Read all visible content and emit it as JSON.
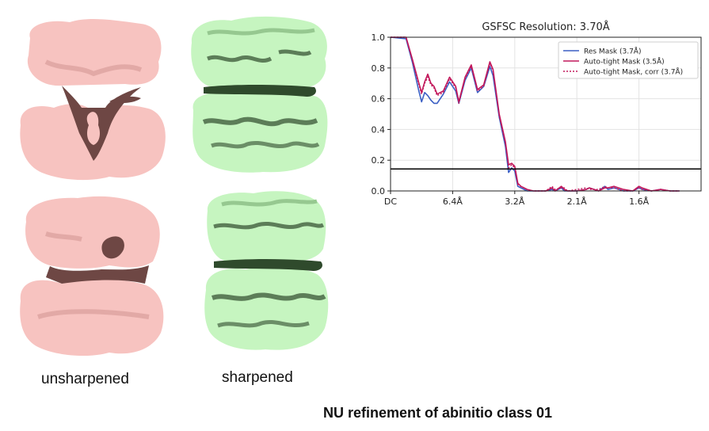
{
  "captions": {
    "unsharpened": "unsharpened",
    "sharpened": "sharpened",
    "footer": "NU refinement of abinitio class 01"
  },
  "colors": {
    "unsharpened_map": "#f7c3c0",
    "unsharpened_shadow": "#6e4744",
    "sharpened_map": "#c6f5c0",
    "sharpened_shadow": "#2f4a2c"
  },
  "chart_data": {
    "type": "line",
    "title": "GSFSC Resolution: 3.70Å",
    "xlabel": "",
    "ylabel": "",
    "ylim": [
      0,
      1
    ],
    "xlim": [
      0,
      1
    ],
    "yticks": [
      "0.0",
      "0.2",
      "0.4",
      "0.6",
      "0.8",
      "1.0"
    ],
    "xticks": [
      {
        "label": "DC",
        "x": 0.0
      },
      {
        "label": "6.4Å",
        "x": 0.2
      },
      {
        "label": "3.2Å",
        "x": 0.4
      },
      {
        "label": "2.1Å",
        "x": 0.6
      },
      {
        "label": "1.6Å",
        "x": 0.8
      }
    ],
    "threshold": 0.143,
    "grid": true,
    "legend_position": "top-right",
    "series": [
      {
        "name": "Res Mask (3.7Å)",
        "color": "#3b5fc4",
        "dash": "solid",
        "x": [
          0.0,
          0.05,
          0.07,
          0.09,
          0.1,
          0.11,
          0.12,
          0.13,
          0.14,
          0.15,
          0.17,
          0.19,
          0.21,
          0.22,
          0.24,
          0.26,
          0.28,
          0.3,
          0.32,
          0.33,
          0.35,
          0.37,
          0.38,
          0.39,
          0.4,
          0.41,
          0.42,
          0.44,
          0.46,
          0.5,
          0.52,
          0.53,
          0.55,
          0.56,
          0.57,
          0.6,
          0.63,
          0.64,
          0.67,
          0.69,
          0.7,
          0.72,
          0.75,
          0.78,
          0.8,
          0.81,
          0.84,
          0.87,
          0.9,
          0.93
        ],
        "y": [
          1.0,
          0.99,
          0.84,
          0.66,
          0.58,
          0.64,
          0.62,
          0.59,
          0.57,
          0.57,
          0.63,
          0.71,
          0.65,
          0.57,
          0.72,
          0.8,
          0.64,
          0.68,
          0.81,
          0.75,
          0.48,
          0.29,
          0.12,
          0.15,
          0.13,
          0.03,
          0.02,
          0.0,
          0.0,
          0.0,
          0.01,
          0.0,
          0.02,
          0.0,
          0.0,
          0.0,
          0.01,
          0.02,
          0.0,
          0.03,
          0.01,
          0.02,
          0.0,
          0.0,
          0.02,
          0.01,
          0.0,
          0.01,
          0.0,
          0.0
        ]
      },
      {
        "name": "Auto-tight Mask (3.5Å)",
        "color": "#c2185b",
        "dash": "solid",
        "x": [
          0.0,
          0.05,
          0.07,
          0.09,
          0.1,
          0.11,
          0.12,
          0.13,
          0.14,
          0.15,
          0.17,
          0.19,
          0.21,
          0.22,
          0.24,
          0.26,
          0.28,
          0.3,
          0.32,
          0.33,
          0.35,
          0.37,
          0.38,
          0.39,
          0.4,
          0.41,
          0.42,
          0.44,
          0.46,
          0.5,
          0.52,
          0.53,
          0.55,
          0.56,
          0.57,
          0.6,
          0.63,
          0.64,
          0.67,
          0.69,
          0.7,
          0.72,
          0.75,
          0.78,
          0.8,
          0.81,
          0.84,
          0.87,
          0.9,
          0.93
        ],
        "y": [
          1.0,
          1.0,
          0.86,
          0.71,
          0.64,
          0.71,
          0.76,
          0.7,
          0.68,
          0.63,
          0.65,
          0.74,
          0.68,
          0.58,
          0.74,
          0.82,
          0.66,
          0.69,
          0.84,
          0.79,
          0.5,
          0.32,
          0.17,
          0.18,
          0.16,
          0.05,
          0.03,
          0.01,
          0.0,
          0.0,
          0.02,
          0.0,
          0.03,
          0.01,
          0.0,
          0.0,
          0.01,
          0.02,
          0.0,
          0.02,
          0.02,
          0.03,
          0.01,
          0.0,
          0.03,
          0.02,
          0.0,
          0.01,
          0.0,
          0.0
        ]
      },
      {
        "name": "Auto-tight Mask, corr (3.7Å)",
        "color": "#c2185b",
        "dash": "dotted",
        "x": [
          0.0,
          0.05,
          0.07,
          0.09,
          0.1,
          0.11,
          0.12,
          0.13,
          0.14,
          0.15,
          0.17,
          0.19,
          0.21,
          0.22,
          0.24,
          0.26,
          0.28,
          0.3,
          0.32,
          0.33,
          0.35,
          0.37,
          0.38,
          0.39,
          0.4,
          0.41,
          0.42,
          0.44,
          0.46,
          0.5,
          0.52,
          0.53,
          0.55,
          0.56,
          0.57,
          0.6,
          0.63,
          0.64,
          0.67,
          0.69,
          0.7,
          0.72,
          0.75,
          0.78,
          0.8,
          0.81,
          0.84,
          0.87,
          0.9,
          0.93
        ],
        "y": [
          1.0,
          1.0,
          0.85,
          0.7,
          0.63,
          0.7,
          0.74,
          0.69,
          0.67,
          0.62,
          0.64,
          0.73,
          0.67,
          0.57,
          0.73,
          0.81,
          0.65,
          0.68,
          0.83,
          0.78,
          0.49,
          0.31,
          0.15,
          0.17,
          0.15,
          0.04,
          0.03,
          0.01,
          0.0,
          0.0,
          0.03,
          0.01,
          0.02,
          0.02,
          0.0,
          0.01,
          0.02,
          0.01,
          0.01,
          0.03,
          0.02,
          0.02,
          0.0,
          0.0,
          0.02,
          0.01,
          0.0,
          0.01,
          0.0,
          0.0
        ]
      }
    ]
  }
}
